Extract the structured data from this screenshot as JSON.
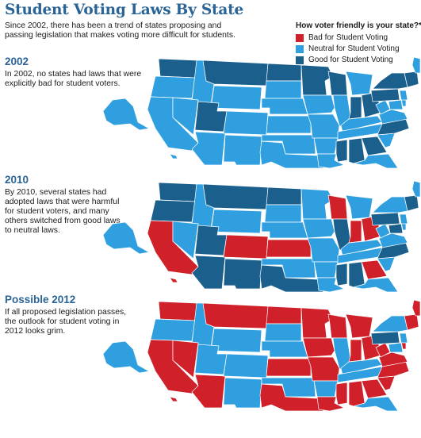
{
  "title": "Student Voting Laws By State",
  "intro": "Since 2002, there has been a trend of states proposing and passing legislation that makes voting more difficult for students.",
  "legend": {
    "title": "How voter friendly is your state?*",
    "items": [
      {
        "key": "bad",
        "label": "Bad for Student Voting",
        "color": "#d0202a"
      },
      {
        "key": "neutral",
        "label": "Neutral for Student Voting",
        "color": "#2f9fe0"
      },
      {
        "key": "good",
        "label": "Good for Student Voting",
        "color": "#1b5f8c"
      }
    ]
  },
  "sections": [
    {
      "id": "2002",
      "heading": "2002",
      "text": "In 2002, no states had laws that were explicitly bad for student voters.",
      "states": {
        "WA": "good",
        "OR": "neutral",
        "CA": "neutral",
        "ID": "neutral",
        "NV": "neutral",
        "MT": "good",
        "WY": "neutral",
        "UT": "good",
        "AZ": "neutral",
        "CO": "neutral",
        "NM": "neutral",
        "ND": "good",
        "SD": "neutral",
        "NE": "neutral",
        "KS": "neutral",
        "OK": "neutral",
        "TX": "neutral",
        "MN": "good",
        "IA": "neutral",
        "MO": "neutral",
        "AR": "neutral",
        "LA": "neutral",
        "WI": "good",
        "IL": "neutral",
        "MI": "neutral",
        "IN": "good",
        "OH": "good",
        "KY": "neutral",
        "TN": "neutral",
        "MS": "good",
        "AL": "good",
        "GA": "good",
        "FL": "neutral",
        "SC": "neutral",
        "NC": "good",
        "VA": "neutral",
        "WV": "neutral",
        "PA": "good",
        "NY": "good",
        "MD": "neutral",
        "DE": "neutral",
        "NJ": "neutral",
        "NE_ST": "good",
        "ME": "neutral",
        "AK": "neutral",
        "HI": "neutral"
      }
    },
    {
      "id": "2010",
      "heading": "2010",
      "text": "By 2010, several states had adopted laws that were harmful for student voters, and many others switched from good laws to neutral laws.",
      "states": {
        "WA": "good",
        "OR": "good",
        "CA": "bad",
        "ID": "neutral",
        "NV": "neutral",
        "MT": "good",
        "WY": "neutral",
        "UT": "good",
        "AZ": "good",
        "CO": "bad",
        "NM": "good",
        "ND": "good",
        "SD": "neutral",
        "NE": "neutral",
        "KS": "bad",
        "OK": "neutral",
        "TX": "good",
        "MN": "neutral",
        "IA": "neutral",
        "MO": "neutral",
        "AR": "neutral",
        "LA": "neutral",
        "WI": "bad",
        "IL": "good",
        "MI": "neutral",
        "IN": "bad",
        "OH": "bad",
        "KY": "neutral",
        "TN": "neutral",
        "MS": "good",
        "AL": "good",
        "GA": "bad",
        "FL": "neutral",
        "SC": "neutral",
        "NC": "good",
        "VA": "neutral",
        "WV": "neutral",
        "PA": "good",
        "NY": "neutral",
        "MD": "good",
        "DE": "neutral",
        "NJ": "neutral",
        "NE_ST": "good",
        "ME": "neutral",
        "AK": "neutral",
        "HI": "bad"
      }
    },
    {
      "id": "2012",
      "heading": "Possible 2012",
      "text": "If all proposed legislation passes, the outlook for student voting in 2012 looks grim.",
      "states": {
        "WA": "bad",
        "OR": "neutral",
        "CA": "bad",
        "ID": "neutral",
        "NV": "bad",
        "MT": "bad",
        "WY": "neutral",
        "UT": "neutral",
        "AZ": "bad",
        "CO": "neutral",
        "NM": "neutral",
        "ND": "bad",
        "SD": "neutral",
        "NE": "neutral",
        "KS": "bad",
        "OK": "neutral",
        "TX": "bad",
        "MN": "bad",
        "IA": "bad",
        "MO": "bad",
        "AR": "neutral",
        "LA": "bad",
        "WI": "bad",
        "IL": "neutral",
        "MI": "bad",
        "IN": "bad",
        "OH": "bad",
        "KY": "neutral",
        "TN": "neutral",
        "MS": "bad",
        "AL": "bad",
        "GA": "bad",
        "FL": "neutral",
        "SC": "bad",
        "NC": "bad",
        "VA": "bad",
        "WV": "bad",
        "PA": "good",
        "NY": "neutral",
        "MD": "neutral",
        "DE": "bad",
        "NJ": "neutral",
        "NE_ST": "bad",
        "ME": "bad",
        "AK": "neutral",
        "HI": "bad"
      }
    }
  ]
}
